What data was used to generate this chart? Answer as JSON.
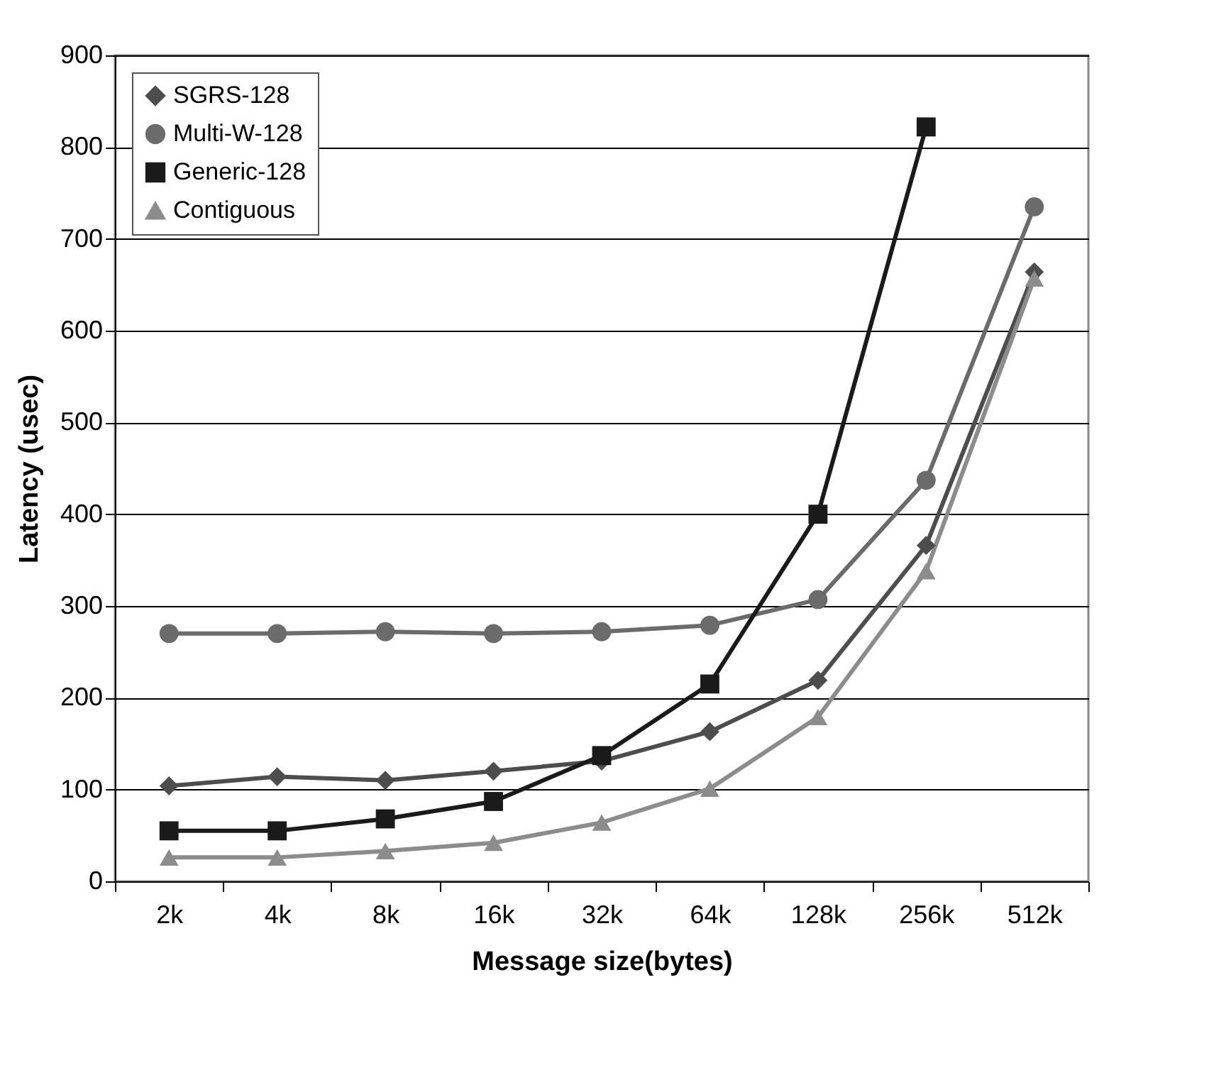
{
  "chart_data": {
    "type": "line",
    "xlabel": "Message size(bytes)",
    "ylabel": "Latency (usec)",
    "categories": [
      "2k",
      "4k",
      "8k",
      "16k",
      "32k",
      "64k",
      "128k",
      "256k",
      "512k"
    ],
    "series": [
      {
        "name": "SGRS-128",
        "color": "#4d4d4d",
        "marker": "diamond",
        "values": [
          104,
          114,
          110,
          120,
          131,
          163,
          219,
          366,
          664
        ]
      },
      {
        "name": "Multi-W-128",
        "color": "#6b6b6b",
        "marker": "circle",
        "values": [
          270,
          270,
          272,
          270,
          272,
          279,
          307,
          437,
          735
        ]
      },
      {
        "name": "Generic-128",
        "color": "#1a1a1a",
        "marker": "square",
        "values": [
          55,
          55,
          68,
          87,
          137,
          215,
          400,
          822,
          null
        ]
      },
      {
        "name": "Contiguous",
        "color": "#8c8c8c",
        "marker": "triangle",
        "values": [
          26,
          26,
          33,
          42,
          64,
          101,
          179,
          338,
          657
        ]
      }
    ],
    "ylim": [
      0,
      900
    ],
    "yticks": [
      0,
      100,
      200,
      300,
      400,
      500,
      600,
      700,
      800,
      900
    ],
    "grid": "y",
    "legend": "top left",
    "line_style": "solid"
  }
}
